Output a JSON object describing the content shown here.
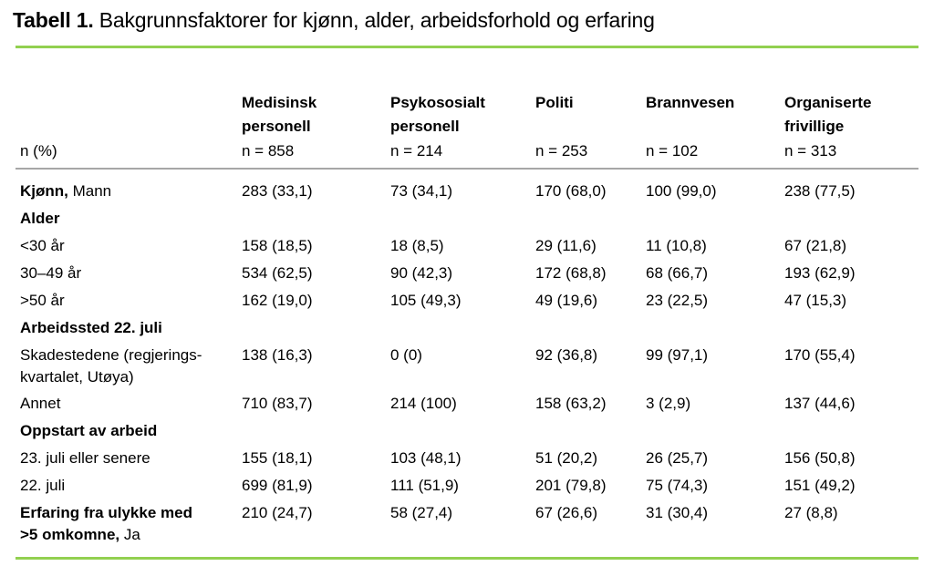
{
  "title": {
    "bold": "Tabell 1.",
    "regular": " Bakgrunnsfaktorer for kjønn, alder, arbeidsforhold og erfaring"
  },
  "colors": {
    "accent_green": "#92D050",
    "divider_gray": "#A6A6A6",
    "text": "#000000"
  },
  "table": {
    "row_label_header": "n (%)",
    "columns": [
      {
        "title": "Medisinsk personell",
        "n": "n = 858"
      },
      {
        "title": "Psykososialt personell",
        "n": "n = 214"
      },
      {
        "title": "Politi",
        "n": "n = 253"
      },
      {
        "title": "Brannvesen",
        "n": "n = 102"
      },
      {
        "title": "Organiserte frivillige",
        "n": "n = 313"
      }
    ],
    "rows": [
      {
        "label_bold": "Kjønn,",
        "label_regular": " Mann",
        "values": [
          "283 (33,1)",
          "73 (34,1)",
          "170 (68,0)",
          "100 (99,0)",
          "238 (77,5)"
        ]
      },
      {
        "label_bold": "Alder",
        "label_regular": "",
        "values": [
          "",
          "",
          "",
          "",
          ""
        ]
      },
      {
        "label_bold": "",
        "label_regular": "<30 år",
        "values": [
          "158 (18,5)",
          "18 (8,5)",
          "29 (11,6)",
          "11 (10,8)",
          "67 (21,8)"
        ]
      },
      {
        "label_bold": "",
        "label_regular": "30–49 år",
        "values": [
          "534 (62,5)",
          "90 (42,3)",
          "172 (68,8)",
          "68 (66,7)",
          "193 (62,9)"
        ]
      },
      {
        "label_bold": "",
        "label_regular": ">50 år",
        "values": [
          "162 (19,0)",
          "105 (49,3)",
          "49 (19,6)",
          "23 (22,5)",
          "47 (15,3)"
        ]
      },
      {
        "label_bold": "Arbeidssted 22. juli",
        "label_regular": "",
        "values": [
          "",
          "",
          "",
          "",
          ""
        ]
      },
      {
        "label_bold": "",
        "label_regular": "Skadestedene (regjerings-\nkvartalet, Utøya)",
        "values": [
          "138 (16,3)",
          "0 (0)",
          "92 (36,8)",
          "99 (97,1)",
          "170 (55,4)"
        ]
      },
      {
        "label_bold": "",
        "label_regular": "Annet",
        "values": [
          "710 (83,7)",
          "214 (100)",
          "158 (63,2)",
          "3 (2,9)",
          "137 (44,6)"
        ]
      },
      {
        "label_bold": "Oppstart av arbeid",
        "label_regular": "",
        "values": [
          "",
          "",
          "",
          "",
          ""
        ]
      },
      {
        "label_bold": "",
        "label_regular": "23. juli eller senere",
        "values": [
          "155 (18,1)",
          "103 (48,1)",
          "51 (20,2)",
          "26 (25,7)",
          "156 (50,8)"
        ]
      },
      {
        "label_bold": "",
        "label_regular": "22. juli",
        "values": [
          "699 (81,9)",
          "111 (51,9)",
          "201 (79,8)",
          "75 (74,3)",
          "151 (49,2)"
        ]
      },
      {
        "label_bold": "Erfaring fra ulykke med\n>5 omkomne,",
        "label_regular": " Ja",
        "values": [
          "210 (24,7)",
          "58 (27,4)",
          "67 (26,6)",
          "31 (30,4)",
          "27 (8,8)"
        ]
      }
    ]
  }
}
